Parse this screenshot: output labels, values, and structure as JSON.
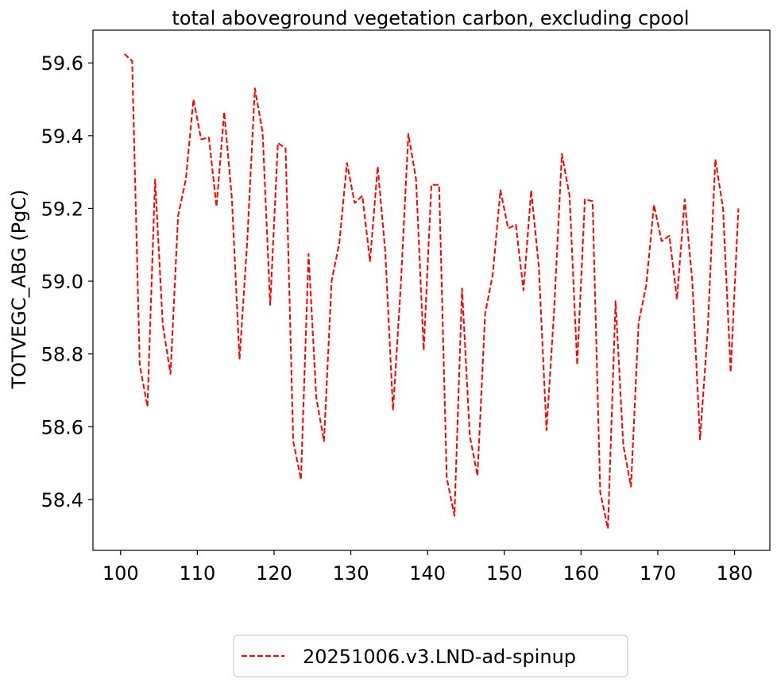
{
  "chart_data": {
    "type": "line",
    "title": "total aboveground vegetation carbon, excluding cpool",
    "xlabel": "",
    "ylabel": "TOTVEGC_ABG (PgC)",
    "xlim": [
      96.4,
      184.6
    ],
    "ylim": [
      58.26,
      59.69
    ],
    "xticks": [
      100,
      110,
      120,
      130,
      140,
      150,
      160,
      170,
      180
    ],
    "yticks": [
      58.4,
      58.6,
      58.8,
      59.0,
      59.2,
      59.4,
      59.6
    ],
    "ytick_labels": [
      "58.4",
      "58.6",
      "58.8",
      "59.0",
      "59.2",
      "59.4",
      "59.6"
    ],
    "grid": false,
    "legend_position": "bottom-center",
    "series": [
      {
        "name": "20251006.v3.LND-ad-spinup",
        "color": "#ff0000",
        "linestyle": "dashed",
        "x": [
          100.5,
          101.5,
          102.5,
          103.5,
          104.5,
          105.5,
          106.5,
          107.5,
          108.5,
          109.5,
          110.5,
          111.5,
          112.5,
          113.5,
          114.5,
          115.5,
          116.5,
          117.5,
          118.5,
          119.5,
          120.5,
          121.5,
          122.5,
          123.5,
          124.5,
          125.5,
          126.5,
          127.5,
          128.5,
          129.5,
          130.5,
          131.5,
          132.5,
          133.5,
          134.5,
          135.5,
          136.5,
          137.5,
          138.5,
          139.5,
          140.5,
          141.5,
          142.5,
          143.5,
          144.5,
          145.5,
          146.5,
          147.5,
          148.5,
          149.5,
          150.5,
          151.5,
          152.5,
          153.5,
          154.5,
          155.5,
          156.5,
          157.5,
          158.5,
          159.5,
          160.5,
          161.5,
          162.5,
          163.5,
          164.5,
          165.5,
          166.5,
          167.5,
          168.5,
          169.5,
          170.5,
          171.5,
          172.5,
          173.5,
          174.5,
          175.5,
          176.5,
          177.5,
          178.5,
          179.5,
          180.5
        ],
        "y": [
          59.625,
          59.605,
          58.77,
          58.655,
          59.28,
          58.88,
          58.745,
          59.18,
          59.28,
          59.5,
          59.39,
          59.395,
          59.205,
          59.465,
          59.23,
          58.785,
          59.11,
          59.53,
          59.41,
          58.935,
          59.38,
          59.365,
          58.56,
          58.455,
          59.075,
          58.68,
          58.56,
          59.0,
          59.105,
          59.325,
          59.215,
          59.235,
          59.055,
          59.315,
          59.08,
          58.645,
          58.985,
          59.405,
          59.28,
          58.81,
          59.265,
          59.265,
          58.46,
          58.355,
          58.98,
          58.575,
          58.465,
          58.91,
          59.02,
          59.25,
          59.145,
          59.155,
          58.975,
          59.25,
          59.04,
          58.59,
          58.925,
          59.35,
          59.235,
          58.77,
          59.225,
          59.22,
          58.42,
          58.32,
          58.945,
          58.55,
          58.435,
          58.885,
          58.99,
          59.21,
          59.11,
          59.125,
          58.95,
          59.225,
          59.0,
          58.565,
          58.865,
          59.335,
          59.2,
          58.75,
          59.2
        ]
      }
    ]
  }
}
